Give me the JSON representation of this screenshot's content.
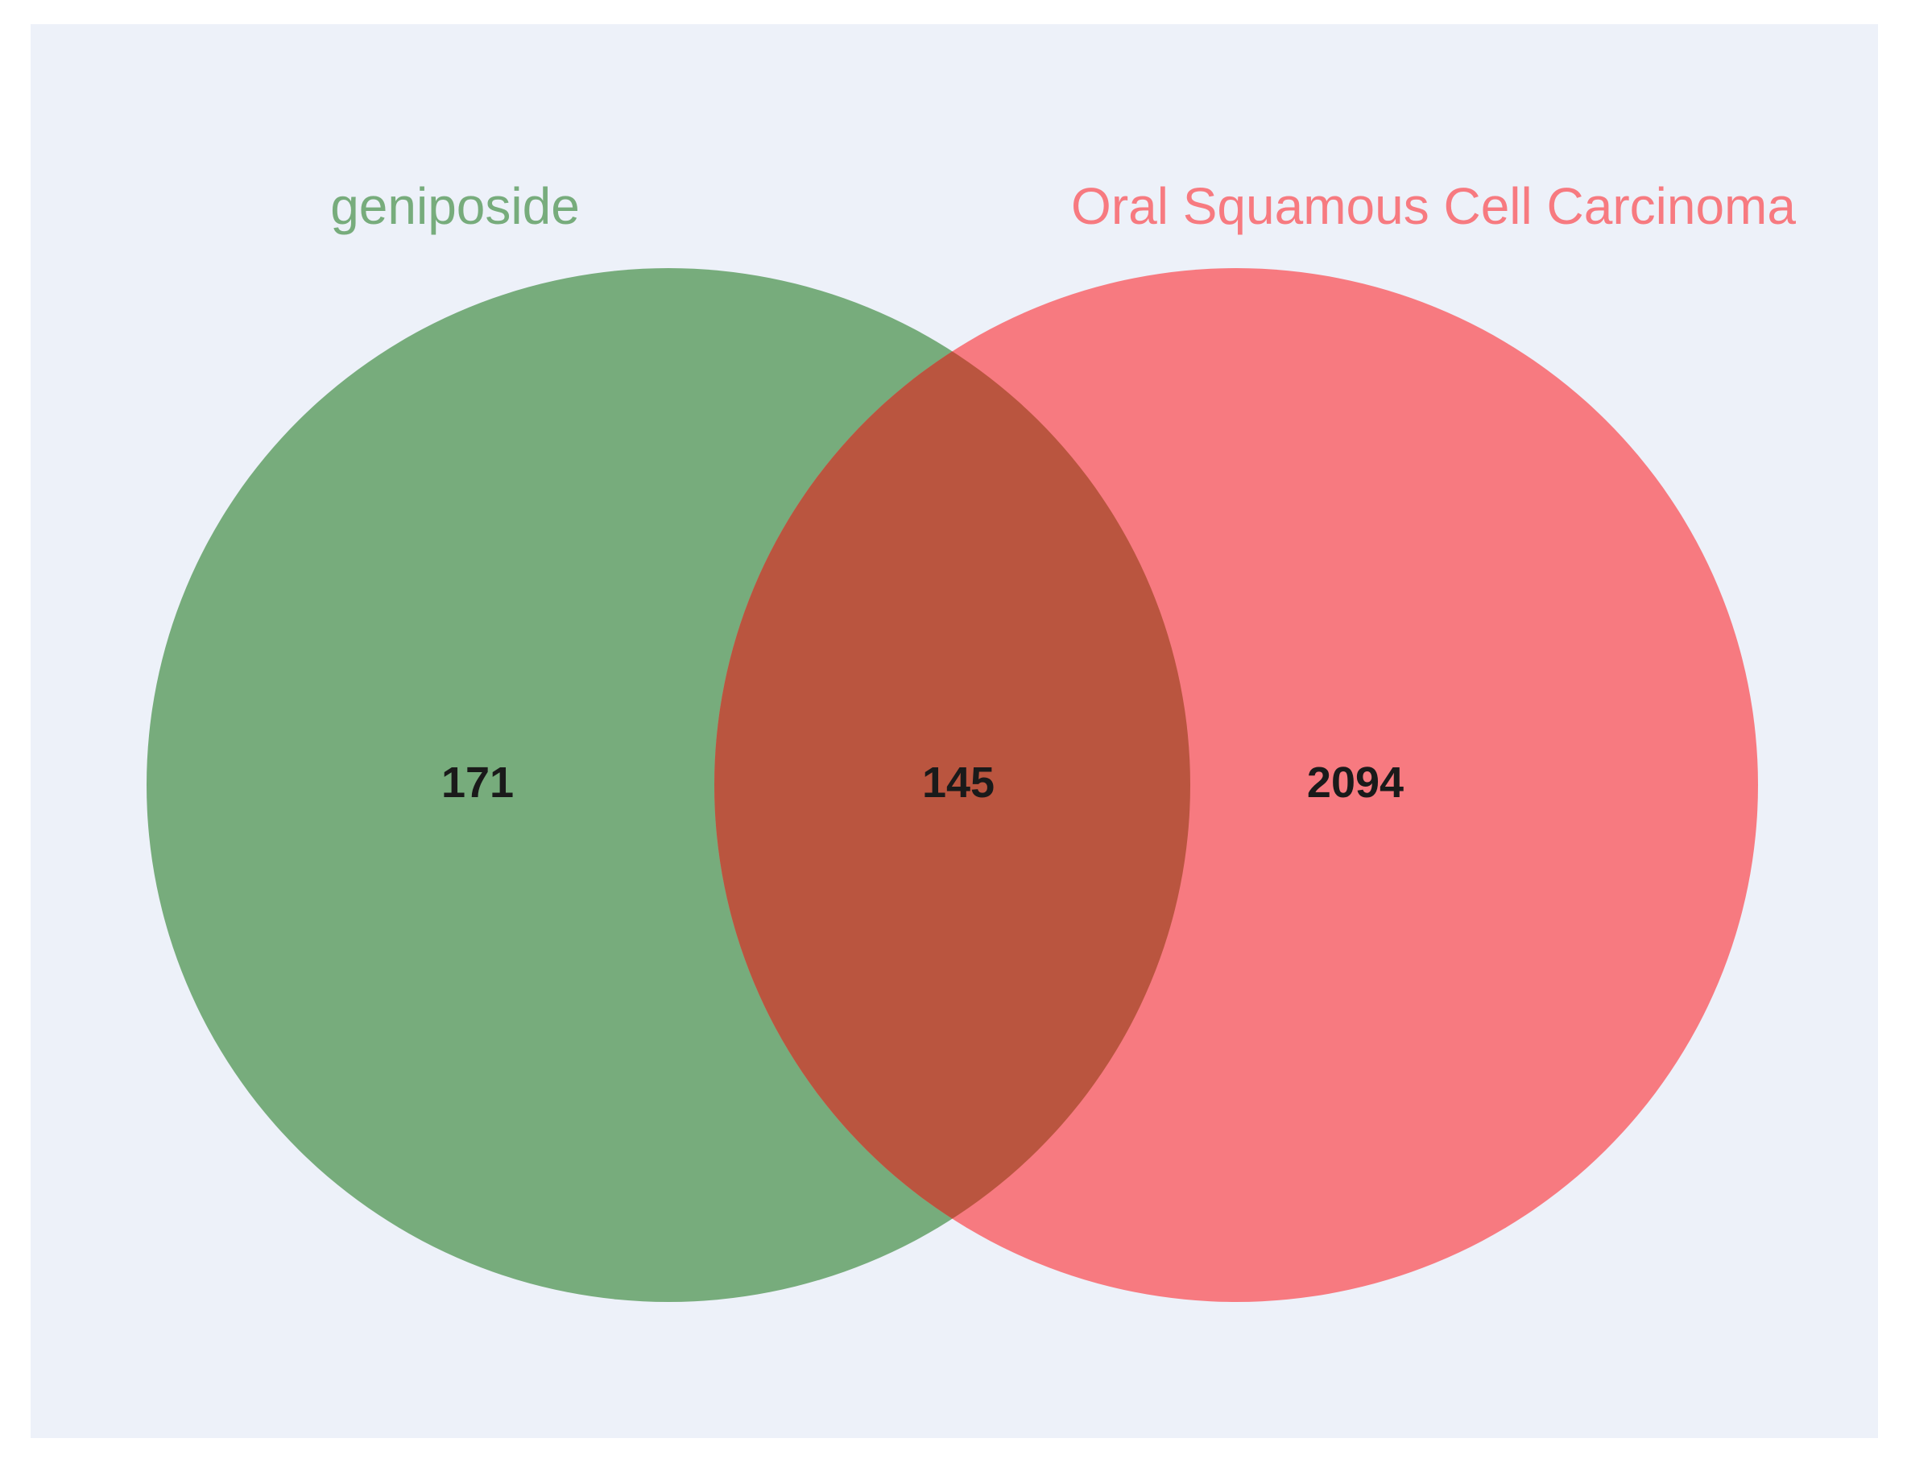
{
  "chart_data": {
    "type": "venn",
    "sets": [
      {
        "name": "geniposide",
        "only": 171,
        "color": "#77AC7C"
      },
      {
        "name": "Oral Squamous Cell Carcinoma",
        "only": 2094,
        "color": "#F77A80"
      }
    ],
    "intersection": 145,
    "intersection_color": "#BA553F",
    "background_color": "#EDF1F9"
  },
  "labels": {
    "set_a": "geniposide",
    "set_b": "Oral Squamous Cell Carcinoma",
    "count_a_only": "171",
    "count_intersection": "145",
    "count_b_only": "2094"
  }
}
